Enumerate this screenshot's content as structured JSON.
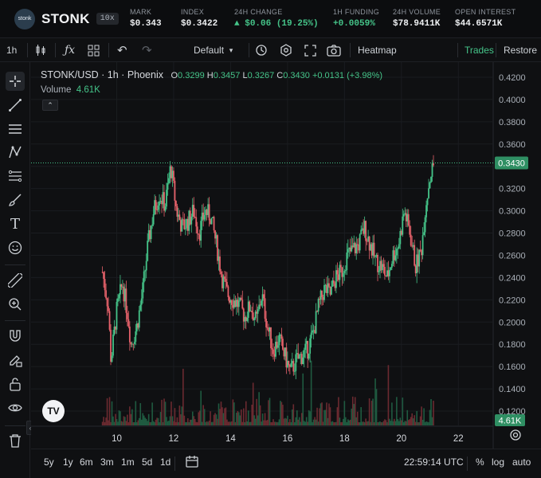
{
  "header": {
    "logo_text": "stonk",
    "ticker": "STONK",
    "leverage": "10x",
    "stats": [
      {
        "label": "MARK",
        "value": "$0.343"
      },
      {
        "label": "INDEX",
        "value": "$0.3422"
      },
      {
        "label": "24H CHANGE",
        "value": "$0.06 (19.25%)"
      },
      {
        "label": "1H FUNDING",
        "value": "+0.0059%"
      },
      {
        "label": "24H VOLUME",
        "value": "$78.9411K"
      },
      {
        "label": "OPEN INTEREST",
        "value": "$44.6571K"
      }
    ]
  },
  "toolbar": {
    "interval": "1h",
    "layout": "Default",
    "heatmap": "Heatmap",
    "trades": "Trades",
    "restore": "Restore"
  },
  "legend": {
    "symbol": "STONK/USD · 1h · Phoenix",
    "o_label": "O",
    "o": "0.3299",
    "h_label": "H",
    "h": "0.3457",
    "l_label": "L",
    "l": "0.3267",
    "c_label": "C",
    "c": "0.3430",
    "change": "+0.0131 (+3.98%)",
    "volume_label": "Volume",
    "volume": "4.61K"
  },
  "chart_data": {
    "type": "candlestick",
    "y_ticks": [
      "0.4200",
      "0.4000",
      "0.3800",
      "0.3600",
      "0.3400",
      "0.3200",
      "0.3000",
      "0.2800",
      "0.2600",
      "0.2400",
      "0.2200",
      "0.2000",
      "0.1800",
      "0.1600",
      "0.1400",
      "0.1200"
    ],
    "x_ticks": [
      "10",
      "12",
      "14",
      "16",
      "18",
      "20",
      "22"
    ],
    "ylim": [
      0.11,
      0.425
    ],
    "last_price": "0.3430",
    "last_volume": "4.61K",
    "up_color": "#45c489",
    "down_color": "#e5616a",
    "anchors": [
      [
        9.5,
        0.245
      ],
      [
        9.7,
        0.215
      ],
      [
        9.8,
        0.165
      ],
      [
        10.0,
        0.21
      ],
      [
        10.2,
        0.235
      ],
      [
        10.4,
        0.205
      ],
      [
        10.5,
        0.18
      ],
      [
        10.7,
        0.195
      ],
      [
        10.9,
        0.225
      ],
      [
        11.1,
        0.27
      ],
      [
        11.3,
        0.3
      ],
      [
        11.5,
        0.315
      ],
      [
        11.7,
        0.305
      ],
      [
        11.9,
        0.34
      ],
      [
        12.1,
        0.3
      ],
      [
        12.3,
        0.285
      ],
      [
        12.5,
        0.29
      ],
      [
        12.7,
        0.3
      ],
      [
        12.9,
        0.28
      ],
      [
        13.1,
        0.3
      ],
      [
        13.3,
        0.295
      ],
      [
        13.5,
        0.27
      ],
      [
        13.7,
        0.24
      ],
      [
        13.9,
        0.225
      ],
      [
        14.1,
        0.22
      ],
      [
        14.3,
        0.215
      ],
      [
        14.5,
        0.205
      ],
      [
        14.7,
        0.215
      ],
      [
        14.9,
        0.2
      ],
      [
        15.1,
        0.225
      ],
      [
        15.3,
        0.195
      ],
      [
        15.5,
        0.175
      ],
      [
        15.7,
        0.185
      ],
      [
        15.9,
        0.17
      ],
      [
        16.1,
        0.155
      ],
      [
        16.3,
        0.165
      ],
      [
        16.5,
        0.17
      ],
      [
        16.7,
        0.175
      ],
      [
        16.9,
        0.19
      ],
      [
        17.1,
        0.215
      ],
      [
        17.3,
        0.23
      ],
      [
        17.5,
        0.225
      ],
      [
        17.7,
        0.24
      ],
      [
        17.9,
        0.245
      ],
      [
        18.1,
        0.26
      ],
      [
        18.3,
        0.265
      ],
      [
        18.5,
        0.27
      ],
      [
        18.7,
        0.285
      ],
      [
        18.9,
        0.27
      ],
      [
        19.1,
        0.255
      ],
      [
        19.3,
        0.25
      ],
      [
        19.5,
        0.24
      ],
      [
        19.7,
        0.26
      ],
      [
        19.9,
        0.27
      ],
      [
        20.1,
        0.3
      ],
      [
        20.3,
        0.28
      ],
      [
        20.5,
        0.25
      ],
      [
        20.7,
        0.265
      ],
      [
        20.85,
        0.305
      ],
      [
        21.0,
        0.33
      ],
      [
        21.15,
        0.343
      ]
    ]
  },
  "bottombar": {
    "ranges": [
      "5y",
      "1y",
      "6m",
      "3m",
      "1m",
      "5d",
      "1d"
    ],
    "time": "22:59:14 UTC",
    "percent": "%",
    "log": "log",
    "auto": "auto"
  }
}
